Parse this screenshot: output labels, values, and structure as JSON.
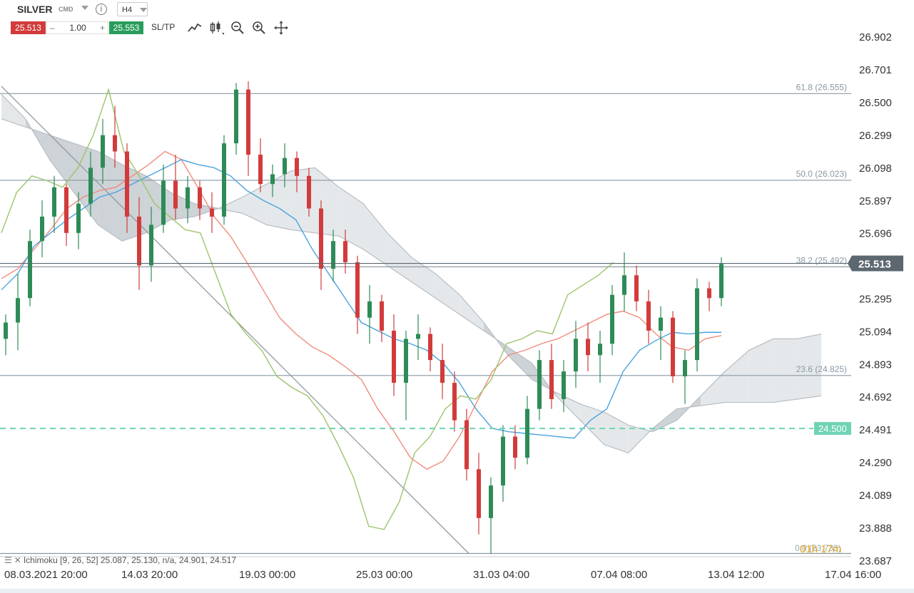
{
  "instrument": {
    "symbol": "SILVER",
    "market": "CMD",
    "info_icon": "info-icon",
    "timeframe": "H4"
  },
  "trade": {
    "sell_price": "25.513",
    "qty": "1.00",
    "buy_price": "25.553",
    "minus": "–",
    "plus": "+",
    "sltp_label": "SL/TP"
  },
  "toolbar": {
    "icons": [
      "line-chart-icon",
      "candlestick-icon",
      "zoom-out-icon",
      "zoom-in-icon",
      "move-icon"
    ]
  },
  "indicator": {
    "label": "Ichimoku [9, 26, 52] 25.087, 25.130, n/a, 24.901, 24.517"
  },
  "countdown": "01h 17m",
  "colors": {
    "bull": "#2e8b57",
    "bear": "#d23b3b",
    "tenkan": "#4aa3df",
    "kijun": "#f08c7c",
    "chikou": "#9cc46a",
    "price_tag": "#5c6770",
    "alert": "#6fd3b5",
    "fib": "#8a99a3",
    "cloud_bull": "#e2e5e8",
    "cloud_bear": "#c9ced3"
  },
  "chart_data": {
    "type": "candlestick",
    "timeframe": "H4",
    "ylim": [
      23.687,
      26.902
    ],
    "yticks": [
      "26.902",
      "26.701",
      "26.500",
      "26.299",
      "26.098",
      "25.897",
      "25.696",
      "25.295",
      "25.094",
      "24.893",
      "24.692",
      "24.491",
      "24.290",
      "24.089",
      "23.888",
      "23.687"
    ],
    "xticks": [
      "08.03.2021 20:00",
      "14.03 20:00",
      "19.03 00:00",
      "25.03 00:00",
      "31.03 04:00",
      "07.04 08:00",
      "13.04 12:00",
      "17.04 16:00"
    ],
    "current_price": "25.513",
    "current_price_value": 25.513,
    "alert_level": {
      "label": "24.500",
      "value": 24.5
    },
    "fibonacci": [
      {
        "label": "61.8 (26.555)",
        "value": 26.555
      },
      {
        "label": "50.0 (26.023)",
        "value": 26.023
      },
      {
        "label": "38.2 (25.492)",
        "value": 25.492
      },
      {
        "label": "23.6 (24.825)",
        "value": 24.825
      },
      {
        "label": "0.0 (23.733)",
        "value": 23.733
      }
    ],
    "ohlc": [
      [
        25.05,
        25.2,
        24.95,
        25.15
      ],
      [
        25.15,
        25.45,
        24.98,
        25.3
      ],
      [
        25.3,
        25.72,
        25.25,
        25.65
      ],
      [
        25.65,
        25.9,
        25.55,
        25.8
      ],
      [
        25.8,
        26.05,
        25.7,
        25.98
      ],
      [
        25.98,
        26.0,
        25.62,
        25.7
      ],
      [
        25.7,
        25.95,
        25.6,
        25.88
      ],
      [
        25.88,
        26.2,
        25.8,
        26.1
      ],
      [
        26.1,
        26.4,
        26.0,
        26.3
      ],
      [
        26.3,
        26.48,
        26.1,
        26.2
      ],
      [
        26.2,
        26.25,
        25.7,
        25.8
      ],
      [
        25.8,
        25.92,
        25.35,
        25.5
      ],
      [
        25.5,
        25.86,
        25.4,
        25.75
      ],
      [
        25.75,
        26.12,
        25.7,
        26.02
      ],
      [
        26.02,
        26.18,
        25.78,
        25.85
      ],
      [
        25.85,
        26.05,
        25.76,
        25.98
      ],
      [
        25.98,
        26.02,
        25.78,
        25.85
      ],
      [
        25.85,
        25.95,
        25.7,
        25.8
      ],
      [
        25.8,
        26.3,
        25.75,
        26.25
      ],
      [
        26.25,
        26.62,
        26.18,
        26.58
      ],
      [
        26.58,
        26.63,
        26.05,
        26.18
      ],
      [
        26.18,
        26.28,
        25.95,
        26.0
      ],
      [
        26.0,
        26.12,
        25.92,
        26.06
      ],
      [
        26.06,
        26.25,
        25.98,
        26.16
      ],
      [
        26.16,
        26.2,
        25.95,
        26.05
      ],
      [
        26.05,
        26.1,
        25.8,
        25.85
      ],
      [
        25.85,
        25.9,
        25.35,
        25.48
      ],
      [
        25.48,
        25.72,
        25.4,
        25.65
      ],
      [
        25.65,
        25.72,
        25.45,
        25.52
      ],
      [
        25.52,
        25.56,
        25.08,
        25.18
      ],
      [
        25.18,
        25.38,
        25.02,
        25.28
      ],
      [
        25.28,
        25.32,
        25.03,
        25.1
      ],
      [
        25.1,
        25.2,
        24.7,
        24.78
      ],
      [
        24.78,
        25.1,
        24.55,
        25.05
      ],
      [
        25.05,
        25.2,
        24.92,
        25.08
      ],
      [
        25.08,
        25.12,
        24.85,
        24.92
      ],
      [
        24.92,
        25.02,
        24.68,
        24.78
      ],
      [
        24.78,
        24.85,
        24.48,
        24.55
      ],
      [
        24.55,
        24.62,
        24.18,
        24.25
      ],
      [
        24.25,
        24.35,
        23.85,
        23.95
      ],
      [
        23.95,
        24.2,
        23.73,
        24.15
      ],
      [
        24.15,
        24.52,
        24.05,
        24.45
      ],
      [
        24.45,
        24.52,
        24.25,
        24.32
      ],
      [
        24.32,
        24.7,
        24.28,
        24.62
      ],
      [
        24.62,
        24.98,
        24.55,
        24.92
      ],
      [
        24.92,
        25.02,
        24.62,
        24.68
      ],
      [
        24.68,
        24.92,
        24.6,
        24.85
      ],
      [
        24.85,
        25.16,
        24.75,
        25.05
      ],
      [
        25.05,
        25.15,
        24.85,
        24.95
      ],
      [
        24.95,
        25.1,
        24.78,
        25.02
      ],
      [
        25.02,
        25.38,
        24.95,
        25.32
      ],
      [
        25.32,
        25.58,
        25.22,
        25.44
      ],
      [
        25.44,
        25.5,
        25.22,
        25.28
      ],
      [
        25.28,
        25.35,
        25.02,
        25.1
      ],
      [
        25.1,
        25.25,
        24.92,
        25.18
      ],
      [
        25.18,
        25.22,
        24.78,
        24.82
      ],
      [
        24.82,
        24.98,
        24.65,
        24.92
      ],
      [
        24.92,
        25.42,
        24.85,
        25.36
      ],
      [
        25.36,
        25.4,
        25.22,
        25.3
      ],
      [
        25.3,
        25.55,
        25.25,
        25.51
      ]
    ],
    "tenkan": [
      25.35,
      25.45,
      25.62,
      25.7,
      25.78,
      25.85,
      25.92,
      25.95,
      26.0,
      26.05,
      26.1,
      26.15,
      26.12,
      26.1,
      26.05,
      25.96,
      25.9,
      25.85,
      25.78,
      25.6,
      25.45,
      25.3,
      25.15,
      25.1,
      25.05,
      25.02,
      24.98,
      24.9,
      24.78,
      24.62,
      24.5,
      24.48,
      24.47,
      24.46,
      24.45,
      24.44,
      24.55,
      24.62,
      24.85,
      24.98,
      25.04,
      25.09,
      25.08,
      25.09,
      25.09
    ],
    "kijun": [
      25.42,
      25.48,
      25.6,
      25.72,
      25.85,
      25.92,
      25.96,
      25.98,
      26.05,
      26.12,
      26.2,
      26.15,
      25.98,
      25.8,
      25.68,
      25.52,
      25.35,
      25.18,
      25.08,
      25.0,
      24.95,
      24.88,
      24.8,
      24.62,
      24.48,
      24.32,
      24.25,
      24.3,
      24.45,
      24.65,
      24.85,
      24.95,
      24.98,
      25.02,
      25.05,
      25.1,
      25.15,
      25.2,
      25.22,
      25.18,
      25.08,
      25.0,
      24.98,
      25.05,
      25.07
    ],
    "chikou": [
      25.7,
      25.95,
      26.05,
      26.02,
      25.98,
      26.1,
      26.3,
      26.58,
      26.2,
      26.05,
      25.88,
      25.8,
      25.72,
      25.7,
      25.45,
      25.2,
      25.08,
      24.98,
      24.82,
      24.75,
      24.7,
      24.58,
      24.4,
      24.2,
      23.9,
      23.88,
      24.05,
      24.35,
      24.45,
      24.62,
      24.7,
      24.68,
      24.8,
      25.02,
      25.05,
      25.1,
      25.08,
      25.32,
      25.38,
      25.44,
      25.52
    ],
    "span_a": [
      26.55,
      26.4,
      26.15,
      25.95,
      25.75,
      25.65,
      25.7,
      25.78,
      25.8,
      25.85,
      25.92,
      26.0,
      26.08,
      26.1,
      25.98,
      25.88,
      25.7,
      25.55,
      25.45,
      25.32,
      25.15,
      24.95,
      24.8,
      24.72,
      24.65,
      24.6,
      24.52,
      24.48,
      24.55,
      24.7,
      24.85,
      24.98,
      25.05,
      25.05,
      25.08
    ],
    "span_b": [
      26.4,
      26.35,
      26.3,
      26.25,
      26.2,
      26.12,
      26.05,
      25.95,
      25.88,
      25.85,
      25.82,
      25.75,
      25.72,
      25.7,
      25.68,
      25.6,
      25.5,
      25.4,
      25.3,
      25.2,
      25.1,
      25.0,
      24.9,
      24.7,
      24.55,
      24.4,
      24.35,
      24.5,
      24.62,
      24.64,
      24.66,
      24.66,
      24.66,
      24.68,
      24.7
    ]
  }
}
